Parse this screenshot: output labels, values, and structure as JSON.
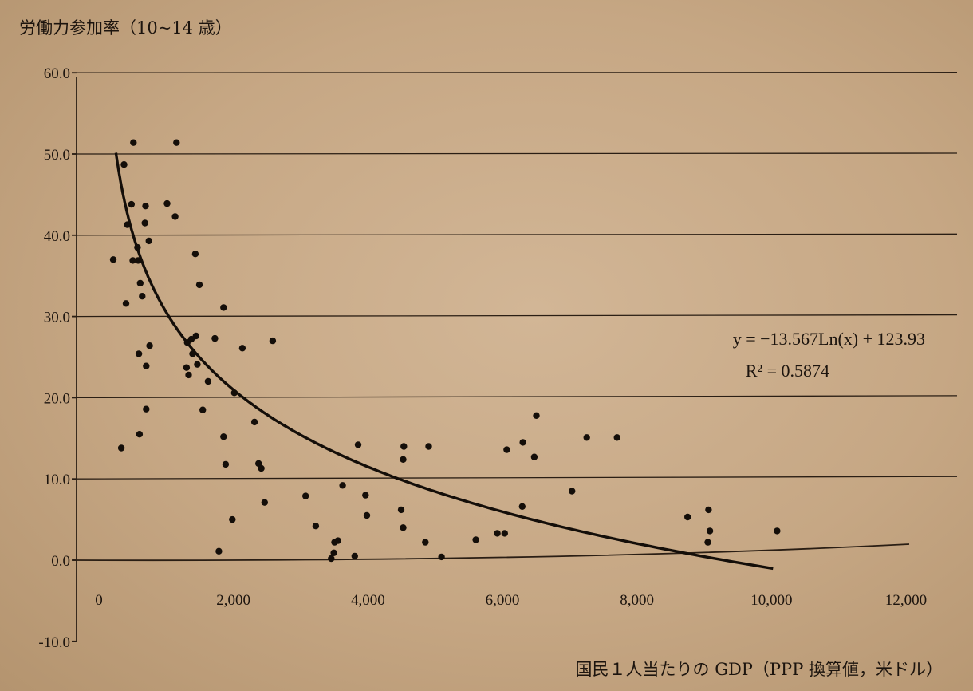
{
  "chart_data": {
    "type": "scatter",
    "title": "",
    "ylabel": "労働力参加率（10~14 歳）",
    "xlabel": "国民１人当たりの GDP（PPP 換算値，米ドル）",
    "xlim": [
      0,
      12000
    ],
    "ylim": [
      -10,
      60
    ],
    "x_ticks": [
      "0",
      "2,000",
      "4,000",
      "6,000",
      "8,000",
      "10,000",
      "12,000"
    ],
    "y_ticks": [
      "60.0",
      "50.0",
      "40.0",
      "30.0",
      "20.0",
      "10.0",
      "0.0",
      "-10.0"
    ],
    "grid": "horizontal",
    "trendline": {
      "type": "logarithmic",
      "a": -13.567,
      "b": 123.93,
      "x_range": [
        230,
        10000
      ],
      "equation": "y = −13.567Ln(x) + 123.93",
      "r2_label": "R² = 0.5874"
    },
    "points": [
      [
        350,
        48.7
      ],
      [
        490,
        51.4
      ],
      [
        1130,
        51.4
      ],
      [
        400,
        41.3
      ],
      [
        460,
        43.8
      ],
      [
        550,
        38.5
      ],
      [
        660,
        41.5
      ],
      [
        670,
        43.6
      ],
      [
        720,
        39.3
      ],
      [
        990,
        43.9
      ],
      [
        1110,
        42.3
      ],
      [
        190,
        37.0
      ],
      [
        480,
        36.9
      ],
      [
        560,
        36.9
      ],
      [
        590,
        34.1
      ],
      [
        620,
        32.5
      ],
      [
        380,
        31.6
      ],
      [
        1410,
        37.7
      ],
      [
        1470,
        33.9
      ],
      [
        1830,
        31.1
      ],
      [
        730,
        26.4
      ],
      [
        570,
        25.4
      ],
      [
        1290,
        26.8
      ],
      [
        1350,
        27.2
      ],
      [
        1420,
        27.6
      ],
      [
        1700,
        27.3
      ],
      [
        1370,
        25.4
      ],
      [
        2110,
        26.1
      ],
      [
        2560,
        27.0
      ],
      [
        1280,
        23.7
      ],
      [
        1310,
        22.8
      ],
      [
        1440,
        24.1
      ],
      [
        680,
        23.9
      ],
      [
        1600,
        22.0
      ],
      [
        1990,
        20.6
      ],
      [
        680,
        18.6
      ],
      [
        1520,
        18.5
      ],
      [
        2290,
        17.0
      ],
      [
        1830,
        15.2
      ],
      [
        580,
        15.5
      ],
      [
        310,
        13.8
      ],
      [
        1860,
        11.8
      ],
      [
        2350,
        11.9
      ],
      [
        2390,
        11.3
      ],
      [
        2440,
        7.1
      ],
      [
        1960,
        5.0
      ],
      [
        1760,
        1.1
      ],
      [
        3050,
        7.9
      ],
      [
        3200,
        4.2
      ],
      [
        3480,
        2.2
      ],
      [
        3530,
        2.4
      ],
      [
        3470,
        0.9
      ],
      [
        3430,
        0.2
      ],
      [
        3600,
        9.2
      ],
      [
        3830,
        14.2
      ],
      [
        3780,
        0.5
      ],
      [
        3940,
        8.0
      ],
      [
        3960,
        5.5
      ],
      [
        4470,
        6.2
      ],
      [
        4500,
        4.0
      ],
      [
        4510,
        14.0
      ],
      [
        4500,
        12.4
      ],
      [
        4830,
        2.2
      ],
      [
        4880,
        14.0
      ],
      [
        5070,
        0.4
      ],
      [
        5580,
        2.5
      ],
      [
        5900,
        3.3
      ],
      [
        6010,
        3.3
      ],
      [
        6040,
        13.6
      ],
      [
        6280,
        14.5
      ],
      [
        6270,
        6.6
      ],
      [
        6450,
        12.7
      ],
      [
        6480,
        17.8
      ],
      [
        7010,
        8.5
      ],
      [
        7230,
        15.1
      ],
      [
        7680,
        15.1
      ],
      [
        8730,
        5.3
      ],
      [
        9040,
        6.2
      ],
      [
        9060,
        3.6
      ],
      [
        9030,
        2.2
      ],
      [
        10060,
        3.6
      ]
    ]
  }
}
